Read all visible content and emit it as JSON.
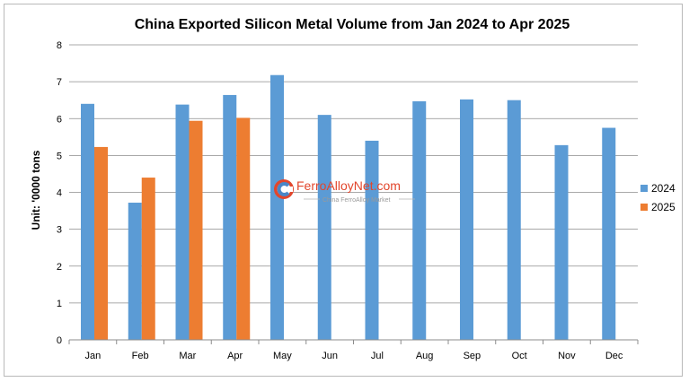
{
  "chart_data": {
    "type": "bar",
    "title": "China Exported Silicon Metal Volume from Jan 2024 to Apr 2025",
    "xlabel": "",
    "ylabel": "Unit: '0000 tons",
    "ylim": [
      0,
      8
    ],
    "yticks": [
      0,
      1,
      2,
      3,
      4,
      5,
      6,
      7,
      8
    ],
    "grid": true,
    "legend_position": "right",
    "categories": [
      "Jan",
      "Feb",
      "Mar",
      "Apr",
      "May",
      "Jun",
      "Jul",
      "Aug",
      "Sep",
      "Oct",
      "Nov",
      "Dec"
    ],
    "series": [
      {
        "name": "2024",
        "color": "#5b9bd5",
        "values": [
          6.4,
          3.72,
          6.38,
          6.64,
          7.18,
          6.1,
          5.4,
          6.47,
          6.52,
          6.5,
          5.28,
          5.75
        ]
      },
      {
        "name": "2025",
        "color": "#ed7d31",
        "values": [
          5.23,
          4.4,
          5.94,
          6.02,
          null,
          null,
          null,
          null,
          null,
          null,
          null,
          null
        ]
      }
    ]
  },
  "watermark": {
    "brand": "FerroAlloyNet.com",
    "tagline": "China FerroAlloy Market",
    "brand_color": "#e2462c"
  }
}
